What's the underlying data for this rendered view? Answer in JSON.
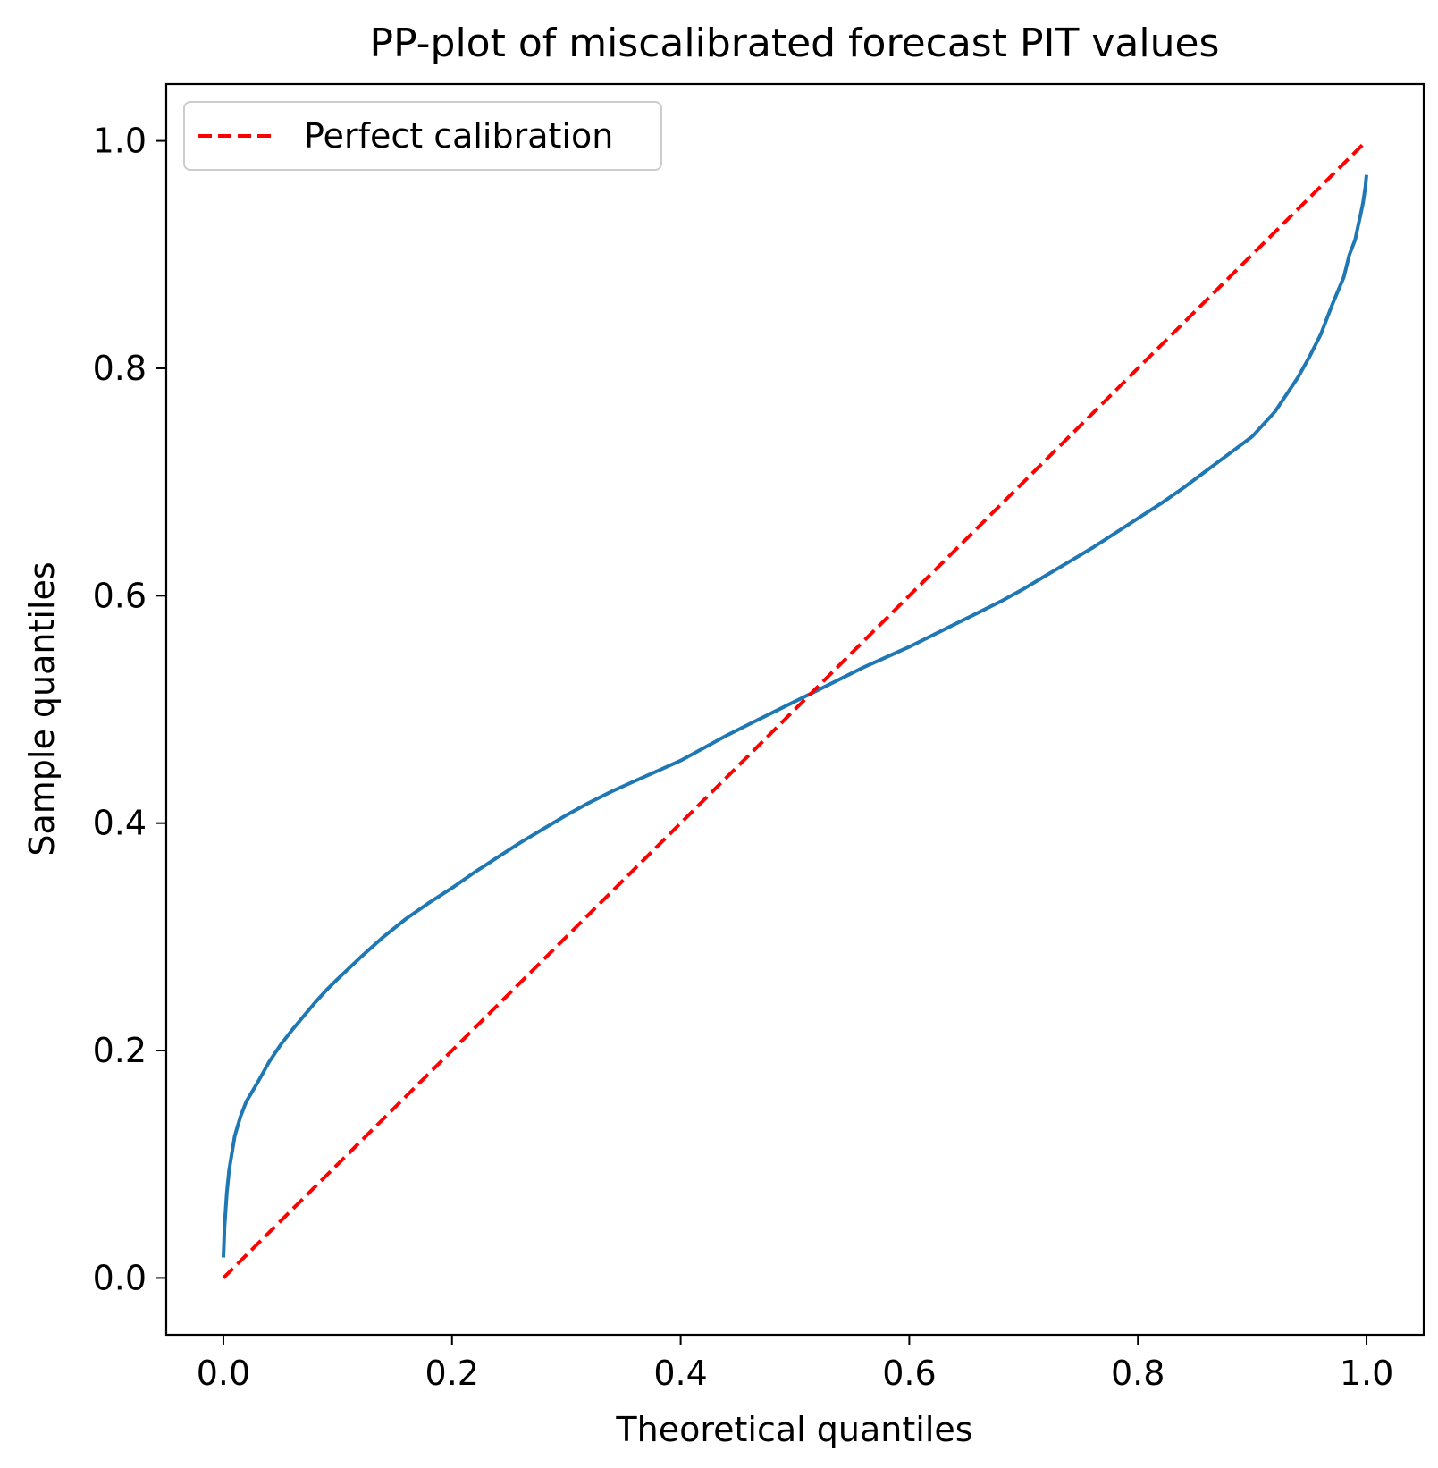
{
  "chart_data": {
    "type": "line",
    "title": "PP-plot of miscalibrated forecast PIT values",
    "xlabel": "Theoretical quantiles",
    "ylabel": "Sample quantiles",
    "xlim": [
      -0.05,
      1.05
    ],
    "ylim": [
      -0.05,
      1.05
    ],
    "xticks": [
      0.0,
      0.2,
      0.4,
      0.6,
      0.8,
      1.0
    ],
    "yticks": [
      0.0,
      0.2,
      0.4,
      0.6,
      0.8,
      1.0
    ],
    "xtick_labels": [
      "0.0",
      "0.2",
      "0.4",
      "0.6",
      "0.8",
      "1.0"
    ],
    "ytick_labels": [
      "0.0",
      "0.2",
      "0.4",
      "0.6",
      "0.8",
      "1.0"
    ],
    "grid": false,
    "legend": {
      "position": "top-left",
      "entries": [
        "Perfect calibration"
      ]
    },
    "series": [
      {
        "color": "#1f77b4",
        "style": "solid",
        "x": [
          0.0,
          0.0005,
          0.001,
          0.002,
          0.003,
          0.005,
          0.0075,
          0.01,
          0.015,
          0.02,
          0.03,
          0.04,
          0.05,
          0.06,
          0.07,
          0.08,
          0.09,
          0.1,
          0.12,
          0.14,
          0.16,
          0.18,
          0.2,
          0.22,
          0.24,
          0.26,
          0.28,
          0.3,
          0.32,
          0.34,
          0.36,
          0.38,
          0.4,
          0.42,
          0.44,
          0.46,
          0.48,
          0.5,
          0.52,
          0.54,
          0.56,
          0.58,
          0.6,
          0.62,
          0.64,
          0.66,
          0.68,
          0.7,
          0.72,
          0.74,
          0.76,
          0.78,
          0.8,
          0.82,
          0.84,
          0.86,
          0.88,
          0.9,
          0.92,
          0.93,
          0.94,
          0.95,
          0.96,
          0.97,
          0.98,
          0.985,
          0.99,
          0.9925,
          0.995,
          0.997,
          0.998,
          0.999,
          0.9995,
          1.0
        ],
        "y": [
          0.018,
          0.03,
          0.045,
          0.06,
          0.075,
          0.095,
          0.11,
          0.125,
          0.142,
          0.155,
          0.172,
          0.19,
          0.205,
          0.218,
          0.23,
          0.242,
          0.253,
          0.263,
          0.282,
          0.3,
          0.316,
          0.33,
          0.343,
          0.357,
          0.37,
          0.383,
          0.395,
          0.407,
          0.418,
          0.428,
          0.437,
          0.446,
          0.455,
          0.466,
          0.477,
          0.487,
          0.497,
          0.507,
          0.517,
          0.527,
          0.537,
          0.546,
          0.555,
          0.565,
          0.575,
          0.585,
          0.595,
          0.606,
          0.618,
          0.63,
          0.642,
          0.655,
          0.668,
          0.681,
          0.695,
          0.71,
          0.725,
          0.74,
          0.762,
          0.777,
          0.792,
          0.81,
          0.83,
          0.856,
          0.88,
          0.9,
          0.913,
          0.925,
          0.936,
          0.946,
          0.953,
          0.96,
          0.965,
          0.97
        ]
      },
      {
        "name": "Perfect calibration",
        "color": "#ff0000",
        "style": "dashed",
        "x": [
          0.0,
          1.0
        ],
        "y": [
          0.0,
          1.0
        ]
      }
    ]
  }
}
